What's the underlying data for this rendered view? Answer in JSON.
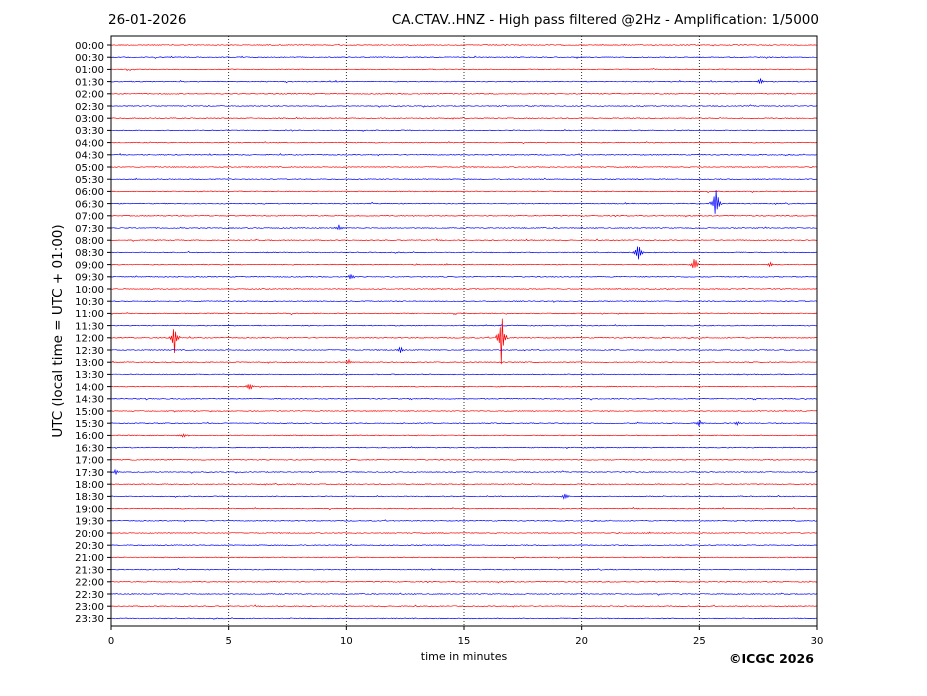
{
  "header": {
    "date": "26-01-2026",
    "title": "CA.CTAV..HNZ - High pass filtered @2Hz - Amplification: 1/5000"
  },
  "copyright": "©ICGC 2026",
  "chart_data": {
    "type": "line",
    "subtype": "helicorder",
    "xlabel": "time in minutes",
    "ylabel": "UTC (local time = UTC + 01:00)",
    "xlim": [
      0,
      30
    ],
    "x_ticks": [
      0,
      5,
      10,
      15,
      20,
      25,
      30
    ],
    "grid": "vertical dotted lines at 5-minute intervals",
    "trace_colors": [
      "#ff0000",
      "#0000ff"
    ],
    "rows": [
      "00:00",
      "00:30",
      "01:00",
      "01:30",
      "02:00",
      "02:30",
      "03:00",
      "03:30",
      "04:00",
      "04:30",
      "05:00",
      "05:30",
      "06:00",
      "06:30",
      "07:00",
      "07:30",
      "08:00",
      "08:30",
      "09:00",
      "09:30",
      "10:00",
      "10:30",
      "11:00",
      "11:30",
      "12:00",
      "12:30",
      "13:00",
      "13:30",
      "14:00",
      "14:30",
      "15:00",
      "15:30",
      "16:00",
      "16:30",
      "17:00",
      "17:30",
      "18:00",
      "18:30",
      "19:00",
      "19:30",
      "20:00",
      "20:30",
      "21:00",
      "21:30",
      "22:00",
      "22:30",
      "23:00",
      "23:30"
    ],
    "events": [
      {
        "row": "01:30",
        "minute": 27.6,
        "amplitude": 0.3
      },
      {
        "row": "06:30",
        "minute": 25.7,
        "amplitude": 1.6
      },
      {
        "row": "07:30",
        "minute": 9.7,
        "amplitude": 0.3
      },
      {
        "row": "08:30",
        "minute": 22.4,
        "amplitude": 0.9
      },
      {
        "row": "09:00",
        "minute": 24.8,
        "amplitude": 0.6
      },
      {
        "row": "09:00",
        "minute": 28.0,
        "amplitude": 0.2
      },
      {
        "row": "09:30",
        "minute": 10.2,
        "amplitude": 0.3
      },
      {
        "row": "12:00",
        "minute": 2.7,
        "amplitude": 1.3
      },
      {
        "row": "12:00",
        "minute": 16.6,
        "amplitude": 2.4
      },
      {
        "row": "12:30",
        "minute": 12.3,
        "amplitude": 0.3
      },
      {
        "row": "13:00",
        "minute": 10.1,
        "amplitude": 0.25
      },
      {
        "row": "14:00",
        "minute": 5.9,
        "amplitude": 0.4
      },
      {
        "row": "15:30",
        "minute": 25.0,
        "amplitude": 0.3
      },
      {
        "row": "15:30",
        "minute": 26.6,
        "amplitude": 0.2
      },
      {
        "row": "16:00",
        "minute": 3.1,
        "amplitude": 0.25
      },
      {
        "row": "17:30",
        "minute": 0.2,
        "amplitude": 0.25
      },
      {
        "row": "18:30",
        "minute": 19.3,
        "amplitude": 0.35
      }
    ]
  }
}
